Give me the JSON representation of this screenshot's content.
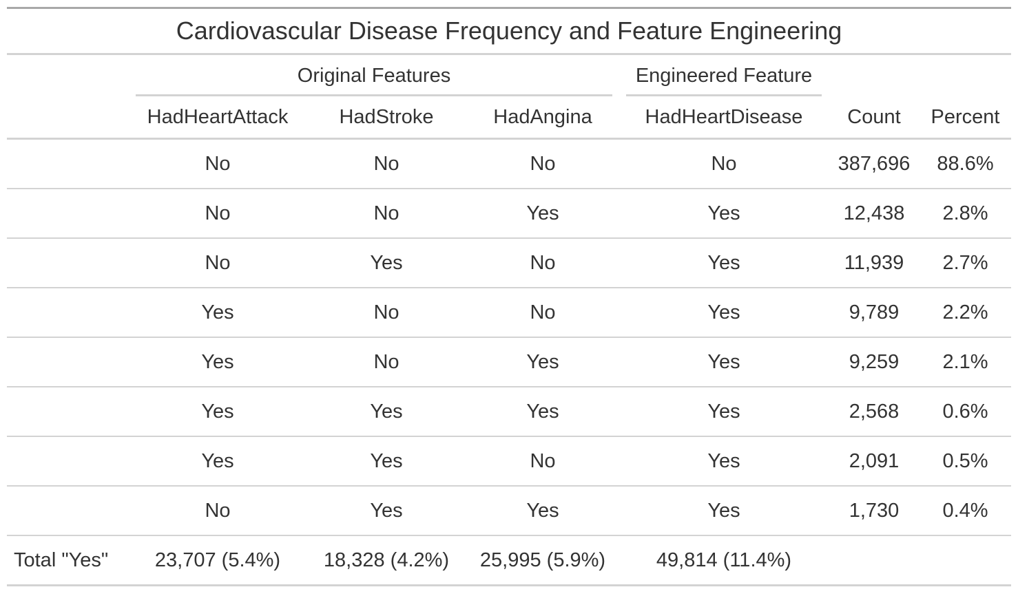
{
  "title": "Cardiovascular Disease Frequency and Feature Engineering",
  "spanners": {
    "original": "Original Features",
    "engineered": "Engineered Feature"
  },
  "columns": [
    "HadHeartAttack",
    "HadStroke",
    "HadAngina",
    "HadHeartDisease",
    "Count",
    "Percent"
  ],
  "rows": [
    [
      "No",
      "No",
      "No",
      "No",
      "387,696",
      "88.6%"
    ],
    [
      "No",
      "No",
      "Yes",
      "Yes",
      "12,438",
      "2.8%"
    ],
    [
      "No",
      "Yes",
      "No",
      "Yes",
      "11,939",
      "2.7%"
    ],
    [
      "Yes",
      "No",
      "No",
      "Yes",
      "9,789",
      "2.2%"
    ],
    [
      "Yes",
      "No",
      "Yes",
      "Yes",
      "9,259",
      "2.1%"
    ],
    [
      "Yes",
      "Yes",
      "Yes",
      "Yes",
      "2,568",
      "0.6%"
    ],
    [
      "Yes",
      "Yes",
      "No",
      "Yes",
      "2,091",
      "0.5%"
    ],
    [
      "No",
      "Yes",
      "Yes",
      "Yes",
      "1,730",
      "0.4%"
    ]
  ],
  "total": {
    "label": "Total \"Yes\"",
    "values": [
      "23,707 (5.4%)",
      "18,328 (4.2%)",
      "25,995 (5.9%)",
      "49,814 (11.4%)",
      "",
      ""
    ]
  }
}
